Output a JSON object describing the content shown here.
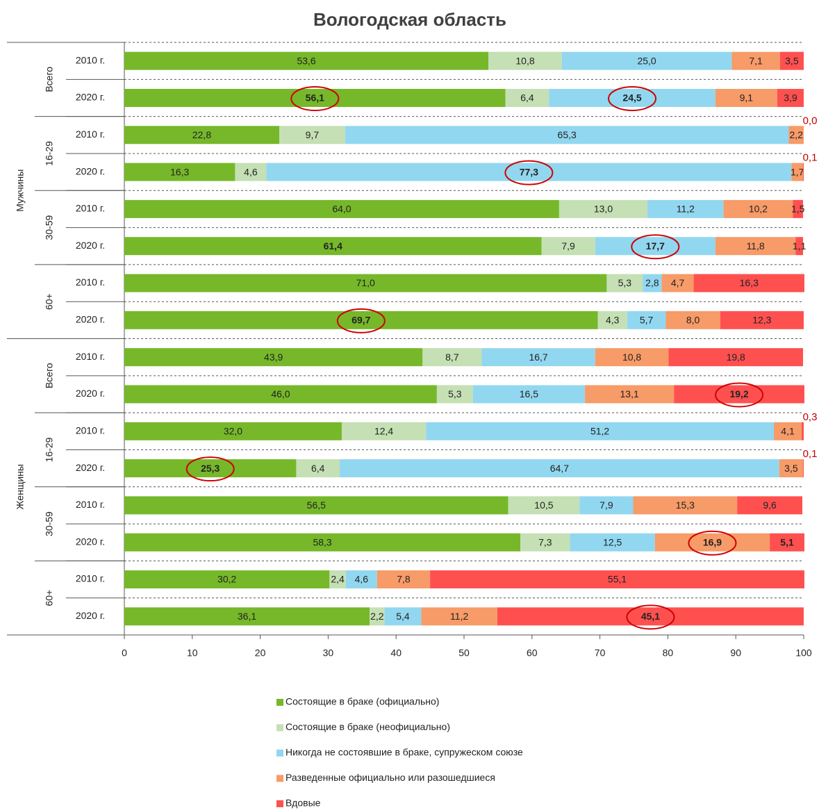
{
  "chart_data": {
    "type": "stacked_bar_horizontal",
    "title": "Вологодская область",
    "categories": [
      "2010 г.",
      "2020 г.",
      "2010 г.",
      "2020 г.",
      "2010 г.",
      "2020 г.",
      "2010 г.",
      "2020 г.",
      "2010 г.",
      "2020 г.",
      "2010 г.",
      "2020 г.",
      "2010 г.",
      "2020 г.",
      "2010 г.",
      "2020 г."
    ],
    "age_groups": [
      "Всего",
      "16-29",
      "30-59",
      "60+",
      "Всего",
      "16-29",
      "30-59",
      "60+"
    ],
    "gender_groups": [
      "Мужчины",
      "Женщины"
    ],
    "xlim": [
      0,
      100
    ],
    "xticks": [
      0,
      10,
      20,
      30,
      40,
      50,
      60,
      70,
      80,
      90,
      100
    ],
    "series": [
      {
        "name": "Состоящие в браке (официально)",
        "color": "#76b82a",
        "values": [
          53.6,
          56.1,
          22.8,
          16.3,
          64.0,
          61.4,
          71.0,
          69.7,
          43.9,
          46.0,
          32.0,
          25.3,
          56.5,
          58.3,
          30.2,
          36.1
        ],
        "value_labels": [
          "53,6",
          "56,1",
          "22,8",
          "16,3",
          "64,0",
          "61,4",
          "71,0",
          "69,7",
          "43,9",
          "46,0",
          "32,0",
          "25,3",
          "56,5",
          "58,3",
          "30,2",
          "36,1"
        ],
        "bold": [
          false,
          true,
          false,
          false,
          false,
          true,
          false,
          true,
          false,
          false,
          false,
          true,
          false,
          false,
          false,
          false
        ],
        "circled": [
          false,
          true,
          false,
          false,
          false,
          false,
          false,
          true,
          false,
          false,
          false,
          true,
          false,
          false,
          false,
          false
        ]
      },
      {
        "name": "Состоящие в браке (неофициально)",
        "color": "#c5e0b4",
        "values": [
          10.8,
          6.4,
          9.7,
          4.6,
          13.0,
          7.9,
          5.3,
          4.3,
          8.7,
          5.3,
          12.4,
          6.4,
          10.5,
          7.3,
          2.4,
          2.2
        ],
        "value_labels": [
          "10,8",
          "6,4",
          "9,7",
          "4,6",
          "13,0",
          "7,9",
          "5,3",
          "4,3",
          "8,7",
          "5,3",
          "12,4",
          "6,4",
          "10,5",
          "7,3",
          "2,4",
          "2,2"
        ],
        "bold": [
          false,
          false,
          false,
          false,
          false,
          false,
          false,
          false,
          false,
          false,
          false,
          false,
          false,
          false,
          false,
          false
        ],
        "circled": [
          false,
          false,
          false,
          false,
          false,
          false,
          false,
          false,
          false,
          false,
          false,
          false,
          false,
          false,
          false,
          false
        ]
      },
      {
        "name": "Никогда не состоявшие в браке, супружеском союзе",
        "color": "#92d7f0",
        "values": [
          25.0,
          24.5,
          65.3,
          77.3,
          11.2,
          17.7,
          2.8,
          5.7,
          16.7,
          16.5,
          51.2,
          64.7,
          7.9,
          12.5,
          4.6,
          5.4
        ],
        "value_labels": [
          "25,0",
          "24,5",
          "65,3",
          "77,3",
          "11,2",
          "17,7",
          "2,8",
          "5,7",
          "16,7",
          "16,5",
          "51,2",
          "64,7",
          "7,9",
          "12,5",
          "4,6",
          "5,4"
        ],
        "bold": [
          false,
          true,
          false,
          true,
          false,
          true,
          false,
          false,
          false,
          false,
          false,
          false,
          false,
          false,
          false,
          false
        ],
        "circled": [
          false,
          true,
          false,
          true,
          false,
          true,
          false,
          false,
          false,
          false,
          false,
          false,
          false,
          false,
          false,
          false
        ]
      },
      {
        "name": "Разведенные официально или разошедшиеся",
        "color": "#f79b68",
        "values": [
          7.1,
          9.1,
          2.2,
          1.7,
          10.2,
          11.8,
          4.7,
          8.0,
          10.8,
          13.1,
          4.1,
          3.5,
          15.3,
          16.9,
          7.8,
          11.2
        ],
        "value_labels": [
          "7,1",
          "9,1",
          "2,2",
          "1,7",
          "10,2",
          "11,8",
          "4,7",
          "8,0",
          "10,8",
          "13,1",
          "4,1",
          "3,5",
          "15,3",
          "16,9",
          "7,8",
          "11,2"
        ],
        "bold": [
          false,
          false,
          false,
          false,
          false,
          false,
          false,
          false,
          false,
          false,
          false,
          false,
          false,
          true,
          false,
          false
        ],
        "circled": [
          false,
          false,
          false,
          false,
          false,
          false,
          false,
          false,
          false,
          false,
          false,
          false,
          false,
          true,
          false,
          false
        ]
      },
      {
        "name": "Вдовые",
        "color": "#ff5050",
        "values": [
          3.5,
          3.9,
          0.0,
          0.1,
          1.5,
          1.1,
          16.3,
          12.3,
          19.8,
          19.2,
          0.3,
          0.1,
          9.6,
          5.1,
          55.1,
          45.1
        ],
        "value_labels": [
          "3,5",
          "3,9",
          "0,0",
          "0,1",
          "1,5",
          "1,1",
          "16,3",
          "12,3",
          "19,8",
          "19,2",
          "0,3",
          "0,1",
          "9,6",
          "5,1",
          "55,1",
          "45,1"
        ],
        "bold": [
          false,
          false,
          false,
          false,
          false,
          false,
          false,
          false,
          false,
          true,
          false,
          false,
          false,
          true,
          false,
          true
        ],
        "circled": [
          false,
          false,
          false,
          false,
          false,
          false,
          false,
          false,
          false,
          true,
          false,
          false,
          false,
          false,
          false,
          true
        ]
      }
    ]
  }
}
